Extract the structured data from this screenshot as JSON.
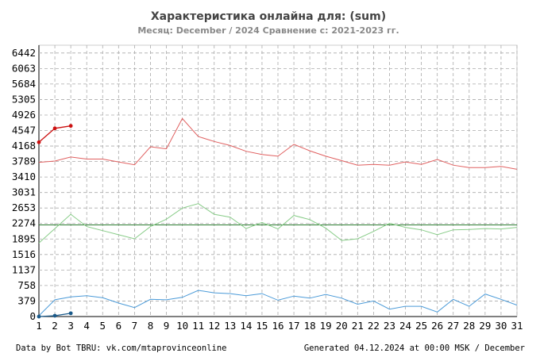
{
  "chart_data": {
    "type": "line",
    "title": "Характеристика онлайна для:  (sum)",
    "subtitle": "Месяц: December / 2024   Сравнение с: 2021-2023 гг.",
    "footer_left": "Data by Bot TBRU: vk.com/mtaprovinceonline",
    "footer_right": "Generated 04.12.2024 at 00:00 MSK / December",
    "xlim": [
      1,
      31
    ],
    "ylim": [
      0,
      6632
    ],
    "x_ticks": [
      "1",
      "2",
      "3",
      "4",
      "5",
      "6",
      "7",
      "8",
      "9",
      "10",
      "11",
      "12",
      "13",
      "14",
      "15",
      "16",
      "17",
      "18",
      "19",
      "20",
      "21",
      "22",
      "23",
      "24",
      "25",
      "26",
      "27",
      "28",
      "29",
      "30",
      "31"
    ],
    "y_ticks": [
      0,
      379,
      758,
      1137,
      1516,
      1895,
      2274,
      2653,
      3031,
      3410,
      3789,
      4168,
      4547,
      4926,
      5305,
      5684,
      6063,
      6442
    ],
    "grid": true,
    "reference_line": {
      "value": 2240,
      "color": "#2e7d32"
    },
    "series": [
      {
        "color": "#e06060",
        "x": [
          1,
          2,
          3,
          4,
          5,
          6,
          7,
          8,
          9,
          10,
          11,
          12,
          13,
          14,
          15,
          16,
          17,
          18,
          19,
          20,
          21,
          22,
          23,
          24,
          25,
          26,
          27,
          28,
          29,
          30,
          31
        ],
        "values": [
          3770,
          3800,
          3900,
          3850,
          3850,
          3780,
          3710,
          4150,
          4100,
          4840,
          4400,
          4280,
          4180,
          4040,
          3960,
          3920,
          4210,
          4050,
          3920,
          3810,
          3700,
          3720,
          3700,
          3780,
          3720,
          3840,
          3700,
          3640,
          3640,
          3670,
          3600
        ]
      },
      {
        "color": "#88cc88",
        "x": [
          1,
          2,
          3,
          4,
          5,
          6,
          7,
          8,
          9,
          10,
          11,
          12,
          13,
          14,
          15,
          16,
          17,
          18,
          19,
          20,
          21,
          22,
          23,
          24,
          25,
          26,
          27,
          28,
          29,
          30,
          31
        ],
        "values": [
          1800,
          2150,
          2500,
          2200,
          2100,
          2000,
          1900,
          2200,
          2380,
          2650,
          2760,
          2500,
          2430,
          2150,
          2300,
          2140,
          2470,
          2370,
          2160,
          1860,
          1900,
          2080,
          2280,
          2180,
          2120,
          2000,
          2120,
          2130,
          2150,
          2140,
          2180
        ]
      },
      {
        "color": "#4a9ad8",
        "x": [
          1,
          2,
          3,
          4,
          5,
          6,
          7,
          8,
          9,
          10,
          11,
          12,
          13,
          14,
          15,
          16,
          17,
          18,
          19,
          20,
          21,
          22,
          23,
          24,
          25,
          26,
          27,
          28,
          29,
          30,
          31
        ],
        "values": [
          20,
          410,
          480,
          510,
          460,
          330,
          220,
          420,
          410,
          470,
          640,
          580,
          560,
          510,
          560,
          400,
          500,
          450,
          540,
          450,
          300,
          380,
          180,
          250,
          250,
          110,
          420,
          250,
          550,
          420,
          280
        ]
      },
      {
        "color": "#cc1111",
        "x": [
          1,
          2,
          3
        ],
        "values": [
          4260,
          4600,
          4660
        ]
      },
      {
        "color": "#1a5a8a",
        "x": [
          1,
          2,
          3
        ],
        "values": [
          0,
          20,
          80
        ]
      }
    ]
  }
}
